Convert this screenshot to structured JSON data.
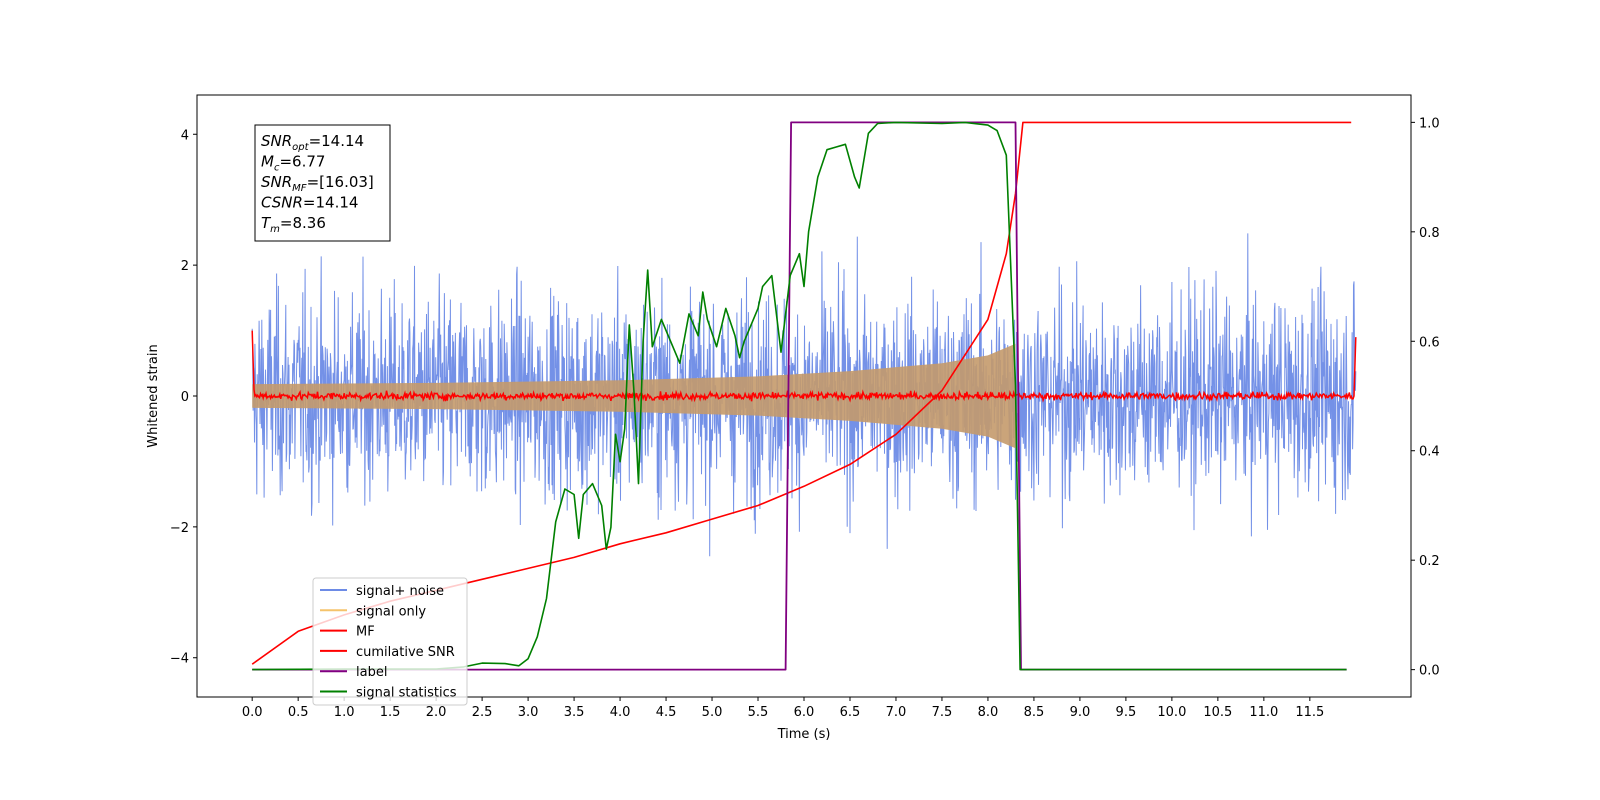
{
  "chart_data": {
    "type": "line",
    "xlabel": "Time (s)",
    "ylabel_left": "Whitened strain",
    "ylabel_right": "",
    "xlim": [
      -0.6,
      12.6
    ],
    "ylim_left": [
      -4.6,
      4.6
    ],
    "ylim_right": [
      -0.05,
      1.05
    ],
    "x_ticks": [
      "0.0",
      "0.5",
      "1.0",
      "1.5",
      "2.0",
      "2.5",
      "3.0",
      "3.5",
      "4.0",
      "4.5",
      "5.0",
      "5.5",
      "6.0",
      "6.5",
      "7.0",
      "7.5",
      "8.0",
      "8.5",
      "9.0",
      "9.5",
      "10.0",
      "10.5",
      "11.0",
      "11.5"
    ],
    "y_ticks_left": [
      "−4",
      "−2",
      "0",
      "2",
      "4"
    ],
    "y_ticks_right": [
      "0.0",
      "0.2",
      "0.4",
      "0.6",
      "0.8",
      "1.0"
    ],
    "grid": false,
    "legend_position": "lower-left",
    "info_box": {
      "lines": [
        {
          "base": "SNR",
          "sub": "opt",
          "rest": "=14.14"
        },
        {
          "base": "M",
          "sub": "c",
          "rest": "=6.77"
        },
        {
          "base": "SNR",
          "sub": "MF",
          "rest": "=[16.03]"
        },
        {
          "base": "CSNR",
          "sub": "",
          "rest": "=14.14"
        },
        {
          "base": "T",
          "sub": "m",
          "rest": "=8.36"
        }
      ]
    },
    "series": [
      {
        "name": "signal+ noise",
        "axis": "left",
        "color": "#6d8be6",
        "description": "whitened noise, approx ±2.5 amplitude, spanning 0–12 s"
      },
      {
        "name": "signal only",
        "axis": "left",
        "color": "#f5c36b",
        "description": "chirp envelope growing from ~0.2 at 0 s to ~0.8 at 8.35 s then ends",
        "envelope": [
          [
            0.0,
            0.18
          ],
          [
            2.0,
            0.2
          ],
          [
            4.0,
            0.24
          ],
          [
            5.5,
            0.3
          ],
          [
            6.5,
            0.38
          ],
          [
            7.5,
            0.5
          ],
          [
            8.0,
            0.62
          ],
          [
            8.3,
            0.8
          ],
          [
            8.35,
            0.0
          ]
        ]
      },
      {
        "name": "MF",
        "axis": "left",
        "color": "#ff0000",
        "description": "matched filter output ~0 with small noise, spikes to 1.0 at both ends"
      },
      {
        "name": "cumilative SNR",
        "axis": "right",
        "color": "#ff0000",
        "points": [
          [
            0.0,
            0.01
          ],
          [
            0.5,
            0.07
          ],
          [
            1.0,
            0.1
          ],
          [
            1.5,
            0.125
          ],
          [
            2.0,
            0.145
          ],
          [
            2.5,
            0.165
          ],
          [
            3.0,
            0.185
          ],
          [
            3.5,
            0.205
          ],
          [
            4.0,
            0.23
          ],
          [
            4.5,
            0.25
          ],
          [
            5.0,
            0.275
          ],
          [
            5.5,
            0.3
          ],
          [
            6.0,
            0.335
          ],
          [
            6.5,
            0.375
          ],
          [
            7.0,
            0.43
          ],
          [
            7.5,
            0.51
          ],
          [
            8.0,
            0.64
          ],
          [
            8.2,
            0.76
          ],
          [
            8.3,
            0.87
          ],
          [
            8.38,
            1.0
          ],
          [
            11.95,
            1.0
          ]
        ]
      },
      {
        "name": "label",
        "axis": "right",
        "color": "#800080",
        "points": [
          [
            0.0,
            0.0
          ],
          [
            5.8,
            0.0
          ],
          [
            5.86,
            1.0
          ],
          [
            8.3,
            1.0
          ],
          [
            8.36,
            0.0
          ],
          [
            11.9,
            0.0
          ]
        ]
      },
      {
        "name": "signal statistics",
        "axis": "right",
        "color": "#008000",
        "points": [
          [
            0.0,
            0.0
          ],
          [
            1.0,
            0.001
          ],
          [
            2.0,
            0.001
          ],
          [
            2.3,
            0.005
          ],
          [
            2.5,
            0.012
          ],
          [
            2.75,
            0.011
          ],
          [
            2.9,
            0.007
          ],
          [
            3.0,
            0.02
          ],
          [
            3.1,
            0.06
          ],
          [
            3.2,
            0.13
          ],
          [
            3.3,
            0.27
          ],
          [
            3.4,
            0.33
          ],
          [
            3.5,
            0.32
          ],
          [
            3.55,
            0.24
          ],
          [
            3.6,
            0.32
          ],
          [
            3.7,
            0.34
          ],
          [
            3.8,
            0.3
          ],
          [
            3.85,
            0.22
          ],
          [
            3.9,
            0.26
          ],
          [
            3.95,
            0.43
          ],
          [
            4.0,
            0.38
          ],
          [
            4.05,
            0.44
          ],
          [
            4.1,
            0.63
          ],
          [
            4.15,
            0.51
          ],
          [
            4.2,
            0.34
          ],
          [
            4.25,
            0.6
          ],
          [
            4.3,
            0.73
          ],
          [
            4.35,
            0.59
          ],
          [
            4.45,
            0.64
          ],
          [
            4.55,
            0.6
          ],
          [
            4.65,
            0.56
          ],
          [
            4.75,
            0.65
          ],
          [
            4.85,
            0.61
          ],
          [
            4.9,
            0.69
          ],
          [
            4.95,
            0.64
          ],
          [
            5.05,
            0.59
          ],
          [
            5.15,
            0.66
          ],
          [
            5.25,
            0.61
          ],
          [
            5.3,
            0.57
          ],
          [
            5.35,
            0.6
          ],
          [
            5.5,
            0.66
          ],
          [
            5.55,
            0.7
          ],
          [
            5.65,
            0.72
          ],
          [
            5.75,
            0.58
          ],
          [
            5.85,
            0.72
          ],
          [
            5.95,
            0.76
          ],
          [
            6.0,
            0.7
          ],
          [
            6.05,
            0.8
          ],
          [
            6.15,
            0.9
          ],
          [
            6.25,
            0.95
          ],
          [
            6.35,
            0.955
          ],
          [
            6.45,
            0.96
          ],
          [
            6.55,
            0.9
          ],
          [
            6.6,
            0.88
          ],
          [
            6.7,
            0.98
          ],
          [
            6.8,
            0.998
          ],
          [
            7.0,
            1.0
          ],
          [
            7.5,
            0.998
          ],
          [
            7.75,
            1.0
          ],
          [
            8.0,
            0.995
          ],
          [
            8.1,
            0.985
          ],
          [
            8.2,
            0.94
          ],
          [
            8.3,
            0.52
          ],
          [
            8.35,
            0.0
          ],
          [
            11.9,
            0.0
          ]
        ]
      }
    ]
  }
}
